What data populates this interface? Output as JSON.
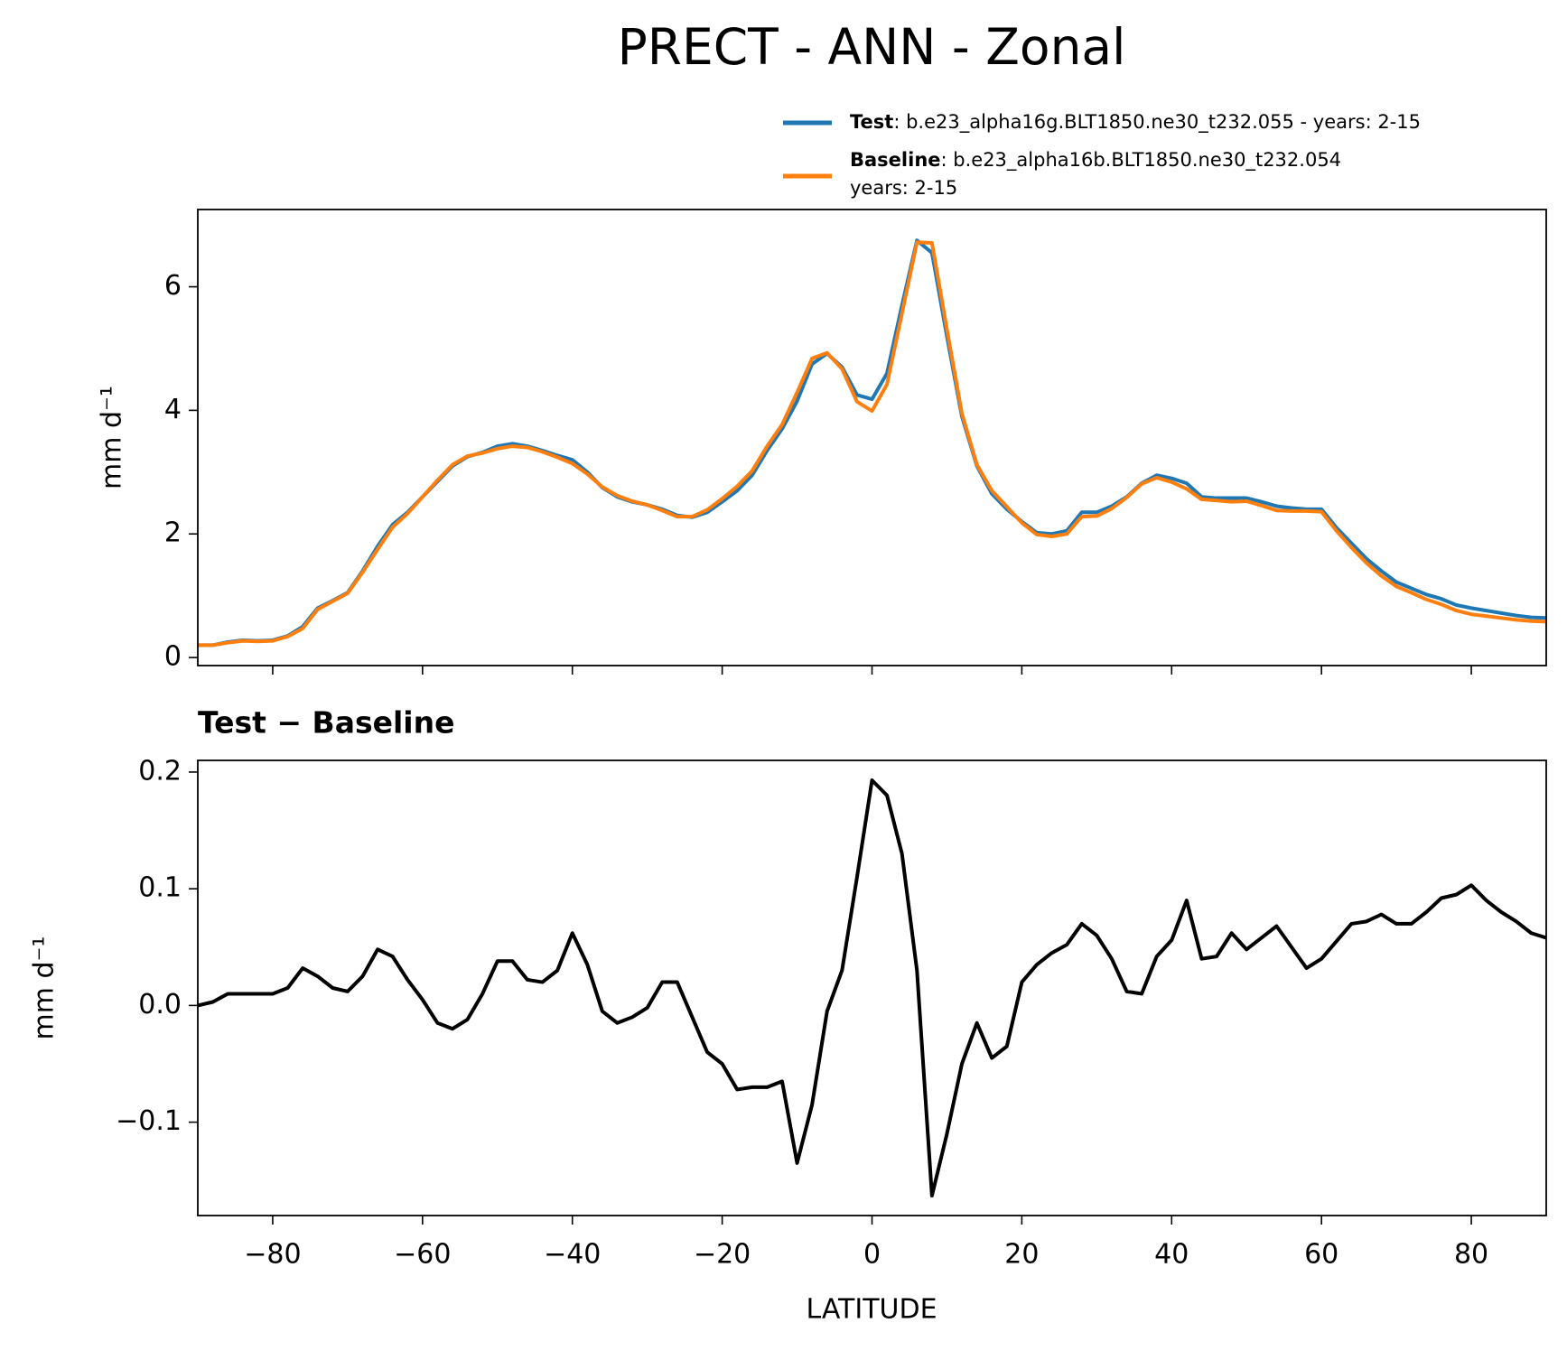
{
  "chart_data": [
    {
      "type": "line",
      "title": "PRECT - ANN - Zonal",
      "ylabel": "mm d⁻¹",
      "x": [
        -90,
        -88,
        -86,
        -84,
        -82,
        -80,
        -78,
        -76,
        -74,
        -72,
        -70,
        -68,
        -66,
        -64,
        -62,
        -60,
        -58,
        -56,
        -54,
        -52,
        -50,
        -48,
        -46,
        -44,
        -42,
        -40,
        -38,
        -36,
        -34,
        -32,
        -30,
        -28,
        -26,
        -24,
        -22,
        -20,
        -18,
        -16,
        -14,
        -12,
        -10,
        -8,
        -6,
        -4,
        -2,
        0,
        2,
        4,
        6,
        8,
        10,
        12,
        14,
        16,
        18,
        20,
        22,
        24,
        26,
        28,
        30,
        32,
        34,
        36,
        38,
        40,
        42,
        44,
        46,
        48,
        50,
        52,
        54,
        56,
        58,
        60,
        62,
        64,
        66,
        68,
        70,
        72,
        74,
        76,
        78,
        80,
        82,
        84,
        86,
        88,
        90
      ],
      "series": [
        {
          "name": "Test",
          "legend_lines": [
            ": b.e23_alpha16g.BLT1850.ne30_t232.055 - years: 2-15"
          ],
          "color": "#1f77b4",
          "values": [
            0.2,
            0.2,
            0.25,
            0.28,
            0.27,
            0.28,
            0.35,
            0.5,
            0.8,
            0.92,
            1.05,
            1.4,
            1.8,
            2.15,
            2.35,
            2.6,
            2.85,
            3.1,
            3.25,
            3.32,
            3.42,
            3.46,
            3.42,
            3.35,
            3.27,
            3.2,
            3.0,
            2.75,
            2.6,
            2.52,
            2.47,
            2.4,
            2.3,
            2.27,
            2.35,
            2.52,
            2.7,
            2.95,
            3.35,
            3.7,
            4.15,
            4.75,
            4.92,
            4.7,
            4.25,
            4.18,
            4.6,
            5.7,
            6.75,
            6.55,
            5.2,
            3.9,
            3.1,
            2.65,
            2.4,
            2.2,
            2.02,
            2.0,
            2.05,
            2.35,
            2.35,
            2.45,
            2.6,
            2.82,
            2.95,
            2.9,
            2.82,
            2.6,
            2.58,
            2.58,
            2.58,
            2.52,
            2.45,
            2.42,
            2.4,
            2.4,
            2.1,
            1.85,
            1.6,
            1.4,
            1.22,
            1.12,
            1.02,
            0.95,
            0.85,
            0.8,
            0.76,
            0.72,
            0.68,
            0.65,
            0.64
          ]
        },
        {
          "name": "Baseline",
          "legend_lines": [
            ": b.e23_alpha16b.BLT1850.ne30_t232.054",
            "years: 2-15"
          ],
          "color": "#ff7f0e",
          "values": [
            0.2,
            0.2,
            0.24,
            0.27,
            0.26,
            0.27,
            0.34,
            0.47,
            0.78,
            0.91,
            1.04,
            1.38,
            1.75,
            2.11,
            2.33,
            2.6,
            2.87,
            3.12,
            3.26,
            3.31,
            3.38,
            3.42,
            3.4,
            3.33,
            3.24,
            3.14,
            2.97,
            2.76,
            2.62,
            2.53,
            2.47,
            2.38,
            2.28,
            2.28,
            2.39,
            2.57,
            2.77,
            3.02,
            3.42,
            3.77,
            4.29,
            4.84,
            4.93,
            4.67,
            4.14,
            3.99,
            4.42,
            5.57,
            6.72,
            6.71,
            5.31,
            3.95,
            3.12,
            2.7,
            2.44,
            2.18,
            1.99,
            1.96,
            2.0,
            2.28,
            2.29,
            2.41,
            2.59,
            2.81,
            2.91,
            2.84,
            2.73,
            2.56,
            2.54,
            2.52,
            2.53,
            2.46,
            2.38,
            2.37,
            2.37,
            2.36,
            2.05,
            1.78,
            1.53,
            1.32,
            1.15,
            1.05,
            0.94,
            0.86,
            0.76,
            0.7,
            0.67,
            0.64,
            0.61,
            0.59,
            0.58
          ]
        }
      ],
      "xlim": [
        -90,
        90
      ],
      "xticks": [
        -80,
        -60,
        -40,
        -20,
        0,
        20,
        40,
        60,
        80
      ],
      "ylim": [
        -0.13,
        7.25
      ],
      "yticks": [
        0,
        2,
        4,
        6
      ]
    },
    {
      "type": "line",
      "subtitle": "Test − Baseline",
      "ylabel": "mm d⁻¹",
      "xlabel": "LATITUDE",
      "x": [
        -90,
        -88,
        -86,
        -84,
        -82,
        -80,
        -78,
        -76,
        -74,
        -72,
        -70,
        -68,
        -66,
        -64,
        -62,
        -60,
        -58,
        -56,
        -54,
        -52,
        -50,
        -48,
        -46,
        -44,
        -42,
        -40,
        -38,
        -36,
        -34,
        -32,
        -30,
        -28,
        -26,
        -24,
        -22,
        -20,
        -18,
        -16,
        -14,
        -12,
        -10,
        -8,
        -6,
        -4,
        -2,
        0,
        2,
        4,
        6,
        8,
        10,
        12,
        14,
        16,
        18,
        20,
        22,
        24,
        26,
        28,
        30,
        32,
        34,
        36,
        38,
        40,
        42,
        44,
        46,
        48,
        50,
        52,
        54,
        56,
        58,
        60,
        62,
        64,
        66,
        68,
        70,
        72,
        74,
        76,
        78,
        80,
        82,
        84,
        86,
        88,
        90
      ],
      "series": [
        {
          "color": "#000000",
          "values": [
            0.0,
            0.003,
            0.01,
            0.01,
            0.01,
            0.01,
            0.015,
            0.032,
            0.025,
            0.015,
            0.012,
            0.025,
            0.048,
            0.042,
            0.022,
            0.005,
            -0.015,
            -0.02,
            -0.012,
            0.01,
            0.038,
            0.038,
            0.022,
            0.02,
            0.03,
            0.062,
            0.035,
            -0.005,
            -0.015,
            -0.01,
            -0.002,
            0.02,
            0.02,
            -0.01,
            -0.04,
            -0.05,
            -0.072,
            -0.07,
            -0.07,
            -0.065,
            -0.135,
            -0.085,
            -0.005,
            0.03,
            0.11,
            0.193,
            0.18,
            0.13,
            0.03,
            -0.163,
            -0.11,
            -0.05,
            -0.015,
            -0.045,
            -0.035,
            0.02,
            0.035,
            0.045,
            0.052,
            0.07,
            0.06,
            0.04,
            0.012,
            0.01,
            0.042,
            0.056,
            0.09,
            0.04,
            0.042,
            0.062,
            0.048,
            0.058,
            0.068,
            0.05,
            0.032,
            0.04,
            0.055,
            0.07,
            0.072,
            0.078,
            0.07,
            0.07,
            0.08,
            0.092,
            0.095,
            0.103,
            0.09,
            0.08,
            0.072,
            0.062,
            0.058
          ]
        }
      ],
      "xlim": [
        -90,
        90
      ],
      "xticks": [
        {
          "value": -80,
          "label": "−80"
        },
        {
          "value": -60,
          "label": "−60"
        },
        {
          "value": -40,
          "label": "−40"
        },
        {
          "value": -20,
          "label": "−20"
        },
        0,
        20,
        40,
        60,
        80
      ],
      "ylim": [
        -0.18,
        0.21
      ],
      "yticks": [
        {
          "value": -0.1,
          "label": "−0.1"
        },
        {
          "value": 0,
          "label": "0.0"
        },
        {
          "value": 0.1,
          "label": "0.1"
        },
        {
          "value": 0.2,
          "label": "0.2"
        }
      ]
    }
  ]
}
